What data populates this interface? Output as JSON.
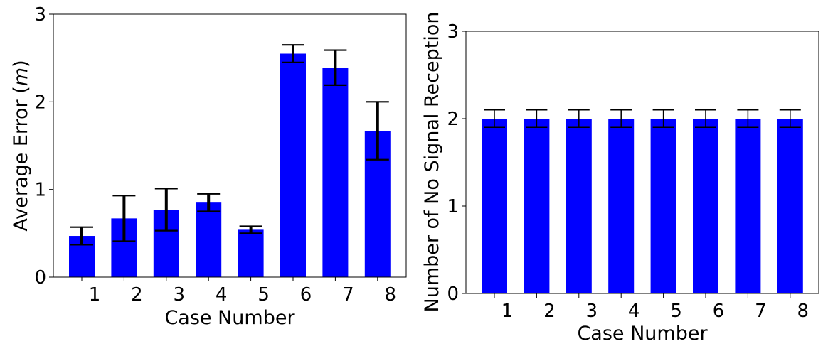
{
  "chart_data": [
    {
      "type": "bar",
      "xlabel": "Case Number",
      "ylabel": "Average Error (m)",
      "ylabel_parts": [
        "Average Error (",
        "m",
        ")"
      ],
      "categories": [
        "1",
        "2",
        "3",
        "4",
        "5",
        "6",
        "7",
        "8"
      ],
      "values": [
        0.47,
        0.67,
        0.77,
        0.85,
        0.54,
        2.55,
        2.39,
        1.67
      ],
      "error": [
        0.1,
        0.26,
        0.24,
        0.1,
        0.04,
        0.1,
        0.2,
        0.33
      ],
      "ylim": [
        0,
        3
      ],
      "yticks": [
        "0",
        "1",
        "2",
        "3"
      ],
      "bar_color": "#0000ff",
      "grid": false
    },
    {
      "type": "bar",
      "xlabel": "Case Number",
      "ylabel": "Number of No Signal Reception",
      "categories": [
        "1",
        "2",
        "3",
        "4",
        "5",
        "6",
        "7",
        "8"
      ],
      "values": [
        2,
        2,
        2,
        2,
        2,
        2,
        2,
        2
      ],
      "error": [
        0.1,
        0.1,
        0.1,
        0.1,
        0.1,
        0.1,
        0.1,
        0.1
      ],
      "ylim": [
        0,
        3
      ],
      "yticks": [
        "0",
        "1",
        "2",
        "3"
      ],
      "bar_color": "#0000ff",
      "grid": false
    }
  ]
}
